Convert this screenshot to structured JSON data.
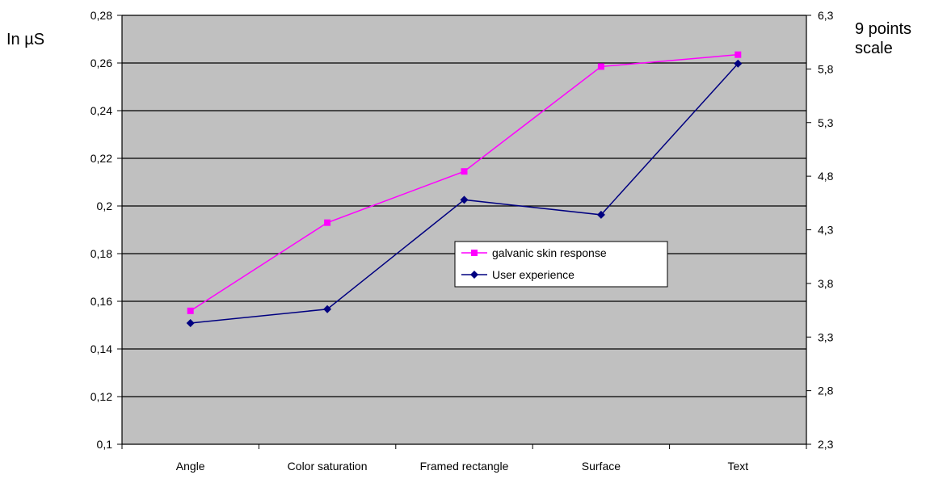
{
  "chart_data": {
    "type": "line",
    "categories": [
      "Angle",
      "Color saturation",
      "Framed rectangle",
      "Surface",
      "Text"
    ],
    "left_axis": {
      "label": "In µS",
      "range": [
        0.1,
        0.28
      ],
      "ticks": [
        "0,1",
        "0,12",
        "0,14",
        "0,16",
        "0,18",
        "0,2",
        "0,22",
        "0,24",
        "0,26",
        "0,28"
      ],
      "tick_values": [
        0.1,
        0.12,
        0.14,
        0.16,
        0.18,
        0.2,
        0.22,
        0.24,
        0.26,
        0.28
      ]
    },
    "right_axis": {
      "label_lines": [
        "9 points",
        "scale"
      ],
      "range": [
        2.3,
        6.3
      ],
      "ticks": [
        "2,3",
        "2,8",
        "3,3",
        "3,8",
        "4,3",
        "4,8",
        "5,3",
        "5,8",
        "6,3"
      ],
      "tick_values": [
        2.3,
        2.8,
        3.3,
        3.8,
        4.3,
        4.8,
        5.3,
        5.8,
        6.3
      ]
    },
    "grid": true,
    "legend_position": "center-right",
    "series": [
      {
        "name": "galvanic skin  response",
        "axis": "left",
        "color": "#ff00ff",
        "marker": "square",
        "values": [
          0.156,
          0.193,
          0.2145,
          0.2585,
          0.2635
        ]
      },
      {
        "name": "User experience",
        "axis": "right",
        "color": "#000080",
        "marker": "diamond",
        "values": [
          3.43,
          3.56,
          4.58,
          4.44,
          5.85
        ]
      }
    ],
    "colors": {
      "plot_background": "#c0c0c0",
      "gridline": "#000000"
    }
  }
}
